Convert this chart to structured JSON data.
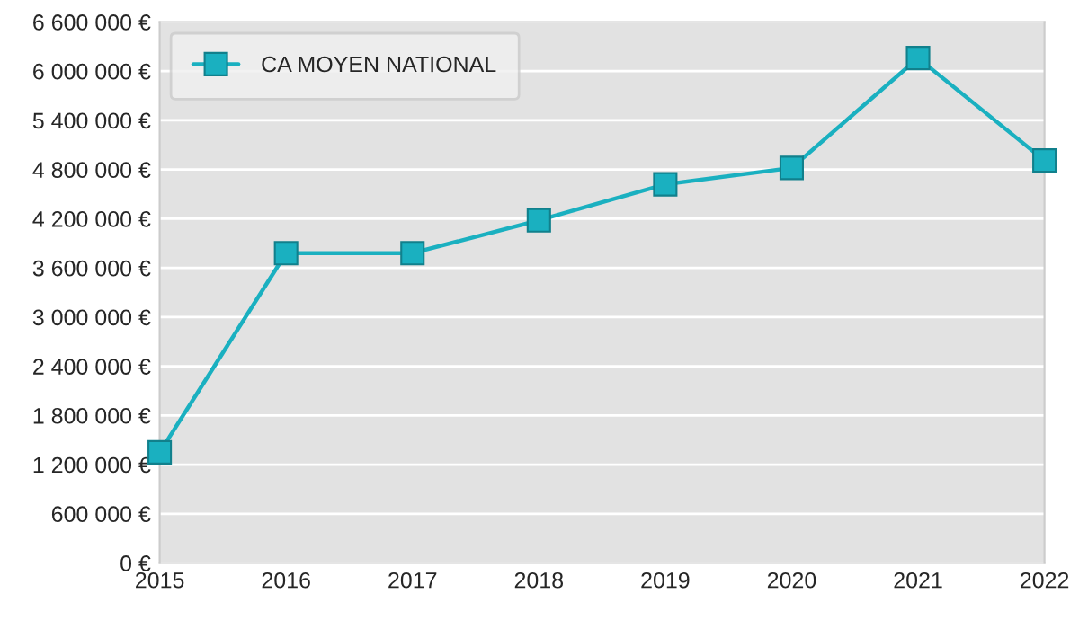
{
  "chart_data": {
    "type": "line",
    "x": [
      2015,
      2016,
      2017,
      2018,
      2019,
      2020,
      2021,
      2022
    ],
    "series": [
      {
        "name": "CA MOYEN NATIONAL",
        "color": "#1ab0c0",
        "values": [
          1350000,
          3780000,
          3780000,
          4180000,
          4620000,
          4820000,
          6160000,
          4910000
        ]
      }
    ],
    "xlim": [
      2015,
      2022
    ],
    "xticks": [
      2015,
      2016,
      2017,
      2018,
      2019,
      2020,
      2021,
      2022
    ],
    "ylim": [
      0,
      6600000
    ],
    "yticks": [
      {
        "value": 0,
        "label": "0 €"
      },
      {
        "value": 600000,
        "label": "600 000 €"
      },
      {
        "value": 1200000,
        "label": "1 200 000 €"
      },
      {
        "value": 1800000,
        "label": "1 800 000 €"
      },
      {
        "value": 2400000,
        "label": "2 400 000 €"
      },
      {
        "value": 3000000,
        "label": "3 000 000 €"
      },
      {
        "value": 3600000,
        "label": "3 600 000 €"
      },
      {
        "value": 4200000,
        "label": "4 200 000 €"
      },
      {
        "value": 4800000,
        "label": "4 800 000 €"
      },
      {
        "value": 5400000,
        "label": "5 400 000 €"
      },
      {
        "value": 6000000,
        "label": "6 000 000 €"
      },
      {
        "value": 6600000,
        "label": "6 600 000 €"
      }
    ],
    "grid": "y",
    "legend": "top left",
    "marker": "square",
    "line_style": "solid"
  }
}
